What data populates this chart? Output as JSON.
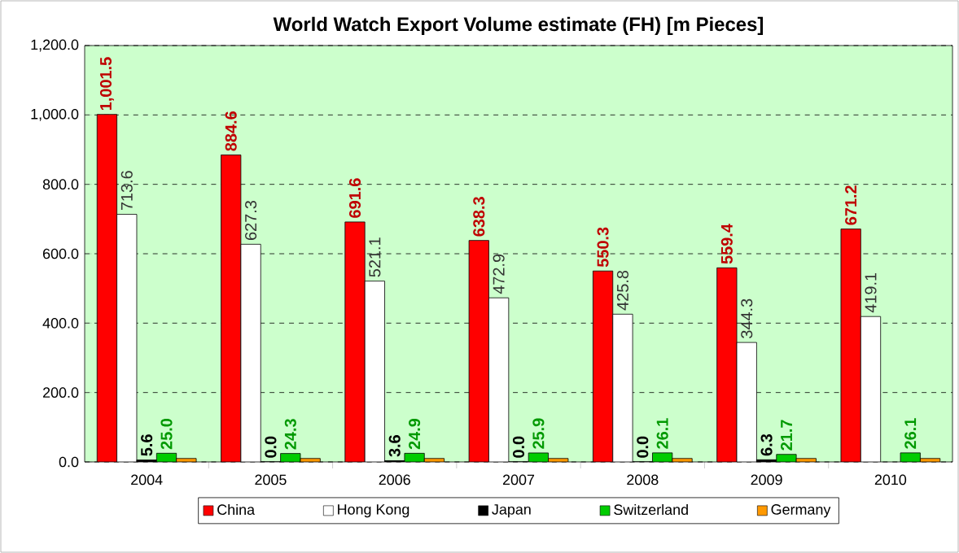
{
  "chart_data": {
    "type": "bar",
    "title": "World Watch Export Volume estimate (FH) [m Pieces]",
    "categories": [
      "2004",
      "2005",
      "2006",
      "2007",
      "2008",
      "2009",
      "2010"
    ],
    "series": [
      {
        "name": "China",
        "color": "#ff0000",
        "values": [
          1001.5,
          884.6,
          691.6,
          638.3,
          550.3,
          559.4,
          671.2
        ],
        "value_labels": [
          "1,001.5",
          "884.6",
          "691.6",
          "638.3",
          "550.3",
          "559.4",
          "671.2"
        ]
      },
      {
        "name": "Hong Kong",
        "color": "#ffffff",
        "values": [
          713.6,
          627.3,
          521.1,
          472.9,
          425.8,
          344.3,
          419.1
        ],
        "value_labels": [
          "713.6",
          "627.3",
          "521.1",
          "472.9",
          "425.8",
          "344.3",
          "419.1"
        ]
      },
      {
        "name": "Japan",
        "color": "#000000",
        "values": [
          5.6,
          0.0,
          3.6,
          0.0,
          0.0,
          6.3,
          null
        ],
        "value_labels": [
          "5.6",
          "0.0",
          "3.6",
          "0.0",
          "0.0",
          "6.3",
          null
        ]
      },
      {
        "name": "Switzerland",
        "color": "#00cc00",
        "values": [
          25.0,
          24.3,
          24.9,
          25.9,
          26.1,
          21.7,
          26.1
        ],
        "value_labels": [
          "25.0",
          "24.3",
          "24.9",
          "25.9",
          "26.1",
          "21.7",
          "26.1"
        ]
      },
      {
        "name": "Germany",
        "color": "#ff9900",
        "values": [
          10,
          10,
          10,
          10,
          10,
          10,
          10
        ]
      }
    ],
    "ylim": [
      0,
      1200
    ],
    "yticks": [
      {
        "value": 0,
        "label": "0.0"
      },
      {
        "value": 200,
        "label": "200.0"
      },
      {
        "value": 400,
        "label": "400.0"
      },
      {
        "value": 600,
        "label": "600.0"
      },
      {
        "value": 800,
        "label": "800.0"
      },
      {
        "value": 1000,
        "label": "1,000.0"
      },
      {
        "value": 1200,
        "label": "1,200.0"
      }
    ],
    "grid": "y",
    "legend": "bottom"
  }
}
